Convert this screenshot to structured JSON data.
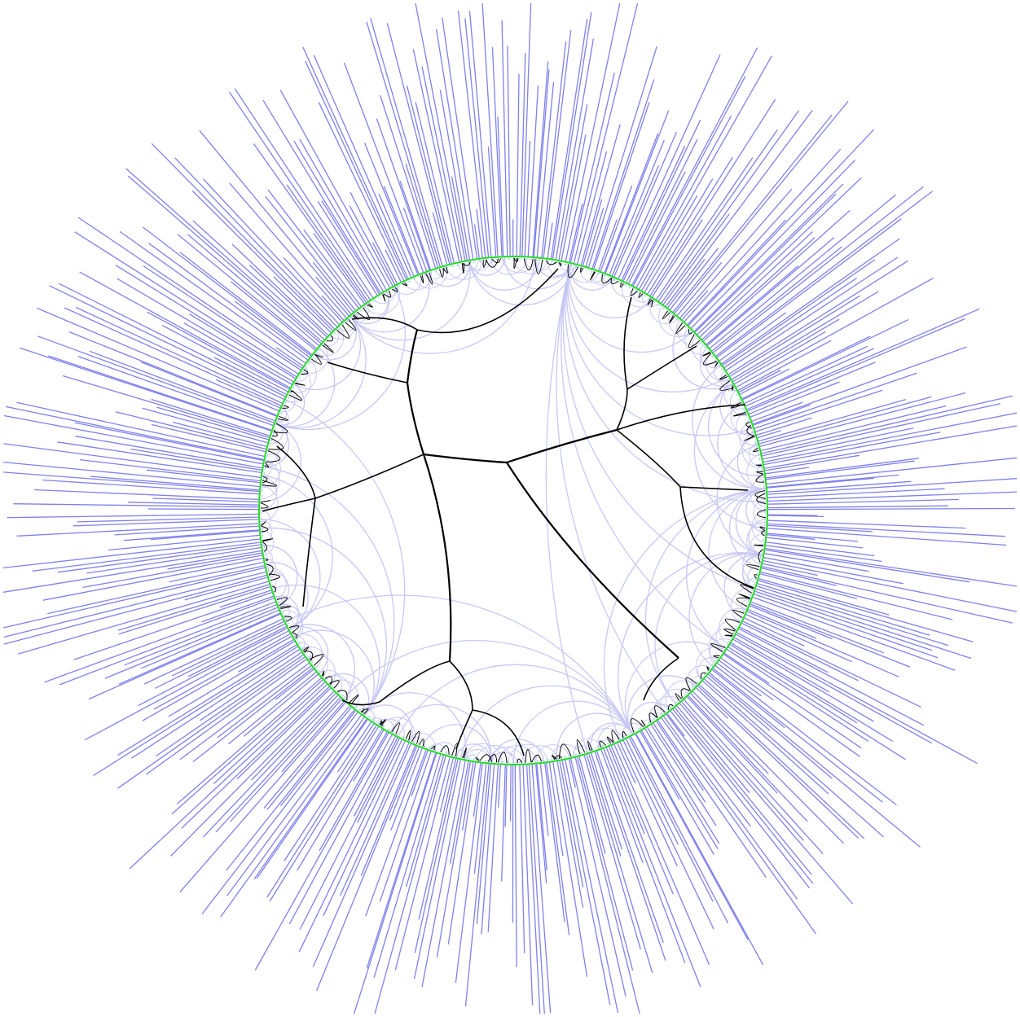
{
  "diagram": {
    "kind": "hyperbolic-tree",
    "colors": {
      "background": "#ffffff",
      "tree_edges": "#000000",
      "geodesic_arcs": "#c8c8f5",
      "boundary_circle": "#22dd22",
      "boundary_marks": "#9ad7d7",
      "spikes": "#8080ee"
    },
    "ring": {
      "spikes_total": 520
    }
  }
}
